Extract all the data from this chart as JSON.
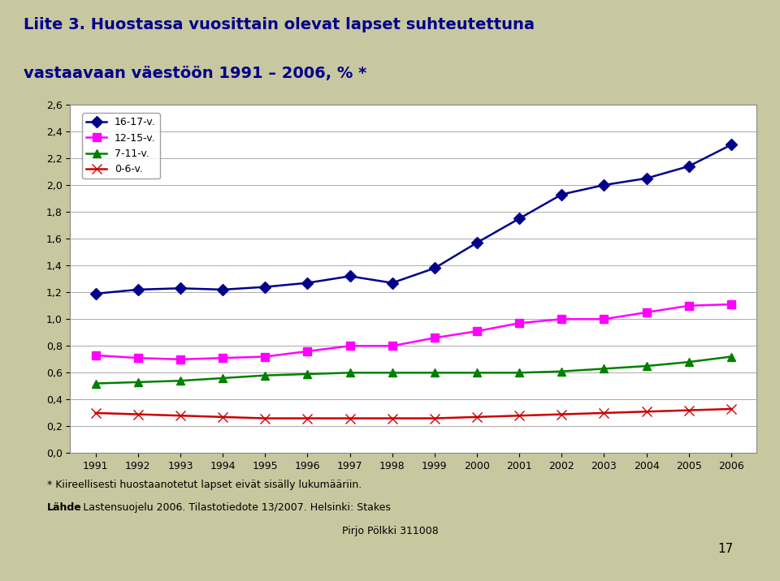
{
  "title_line1": "Liite 3. Huostassa vuosittain olevat lapset suhteutettuna",
  "title_line2": "vastaavaan väestöön 1991 – 2006, % *",
  "years": [
    1991,
    1992,
    1993,
    1994,
    1995,
    1996,
    1997,
    1998,
    1999,
    2000,
    2001,
    2002,
    2003,
    2004,
    2005,
    2006
  ],
  "series": {
    "16-17-v.": {
      "values": [
        1.19,
        1.22,
        1.23,
        1.22,
        1.24,
        1.27,
        1.32,
        1.27,
        1.38,
        1.57,
        1.75,
        1.93,
        2.0,
        2.05,
        2.14,
        2.3
      ],
      "color": "#00008B",
      "marker": "D",
      "markersize": 7,
      "linewidth": 1.8
    },
    "12-15-v.": {
      "values": [
        0.73,
        0.71,
        0.7,
        0.71,
        0.72,
        0.76,
        0.8,
        0.8,
        0.86,
        0.91,
        0.97,
        1.0,
        1.0,
        1.05,
        1.1,
        1.11
      ],
      "color": "#FF00FF",
      "marker": "s",
      "markersize": 7,
      "linewidth": 1.8
    },
    "7-11-v.": {
      "values": [
        0.52,
        0.53,
        0.54,
        0.56,
        0.58,
        0.59,
        0.6,
        0.6,
        0.6,
        0.6,
        0.6,
        0.61,
        0.63,
        0.65,
        0.68,
        0.72
      ],
      "color": "#008000",
      "marker": "^",
      "markersize": 7,
      "linewidth": 1.8
    },
    "0-6-v.": {
      "values": [
        0.3,
        0.29,
        0.28,
        0.27,
        0.26,
        0.26,
        0.26,
        0.26,
        0.26,
        0.27,
        0.28,
        0.29,
        0.3,
        0.31,
        0.32,
        0.33
      ],
      "color": "#CC0000",
      "marker": "x",
      "markersize": 8,
      "linewidth": 1.8
    }
  },
  "ylim": [
    0.0,
    2.6
  ],
  "yticks": [
    0.0,
    0.2,
    0.4,
    0.6,
    0.8,
    1.0,
    1.2,
    1.4,
    1.6,
    1.8,
    2.0,
    2.2,
    2.4,
    2.6
  ],
  "ytick_labels": [
    "0,0",
    "0,2",
    "0,4",
    "0,6",
    "0,8",
    "1,0",
    "1,2",
    "1,4",
    "1,6",
    "1,8",
    "2,0",
    "2,2",
    "2,4",
    "2,6"
  ],
  "bg_color": "#C8C8A0",
  "chart_bg": "#FFFFFF",
  "footnote1": "* Kiireellisesti huostaanotetut lapset eivät sisälly lukumääriin.",
  "footnote2_bold": "Lähde",
  "footnote2_rest": ": Lastensuojelu 2006. Tilastotiedote 13/2007. Helsinki: Stakes",
  "footnote3": "Pirjo Pölkki 311008",
  "page_number": "17",
  "title_color": "#00008B"
}
